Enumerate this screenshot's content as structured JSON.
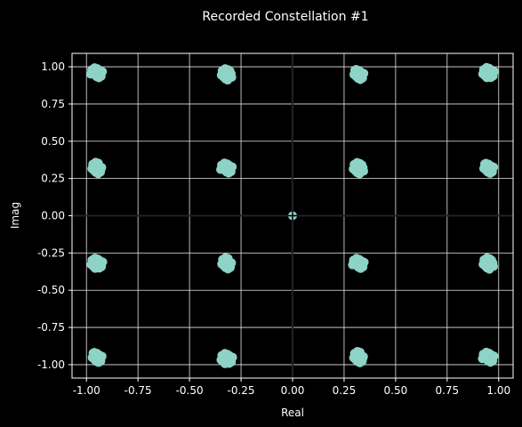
{
  "colors": {
    "background": "#000000",
    "foreground": "#ffffff",
    "grid": "#e6e6e6",
    "marker": "#8dd3c7"
  },
  "chart_data": {
    "type": "scatter",
    "title": "Recorded Constellation #1",
    "xlabel": "Real",
    "ylabel": "Imag",
    "xlim": [
      -1.07,
      1.07
    ],
    "ylim": [
      -1.09,
      1.09
    ],
    "grid": true,
    "xticks": [
      "-1.00",
      "-0.75",
      "-0.50",
      "-0.25",
      "0.00",
      "0.25",
      "0.50",
      "0.75",
      "1.00"
    ],
    "yticks": [
      "1.00",
      "0.75",
      "0.50",
      "0.25",
      "0.00",
      "-0.25",
      "-0.50",
      "-0.75",
      "-1.00"
    ],
    "xtick_values": [
      -1.0,
      -0.75,
      -0.5,
      -0.25,
      0.0,
      0.25,
      0.5,
      0.75,
      1.0
    ],
    "ytick_values": [
      1.0,
      0.75,
      0.5,
      0.25,
      0.0,
      -0.25,
      -0.5,
      -0.75,
      -1.0
    ],
    "clusters": [
      {
        "x": -0.95,
        "y": 0.96
      },
      {
        "x": -0.32,
        "y": 0.95
      },
      {
        "x": 0.32,
        "y": 0.95
      },
      {
        "x": 0.95,
        "y": 0.96
      },
      {
        "x": -0.95,
        "y": 0.32
      },
      {
        "x": -0.32,
        "y": 0.32
      },
      {
        "x": 0.32,
        "y": 0.32
      },
      {
        "x": 0.95,
        "y": 0.32
      },
      {
        "x": -0.95,
        "y": -0.32
      },
      {
        "x": -0.32,
        "y": -0.32
      },
      {
        "x": 0.32,
        "y": -0.32
      },
      {
        "x": 0.95,
        "y": -0.32
      },
      {
        "x": -0.95,
        "y": -0.95
      },
      {
        "x": -0.32,
        "y": -0.96
      },
      {
        "x": 0.32,
        "y": -0.95
      },
      {
        "x": 0.95,
        "y": -0.95
      }
    ],
    "center_point": {
      "x": 0.0,
      "y": 0.0
    }
  }
}
